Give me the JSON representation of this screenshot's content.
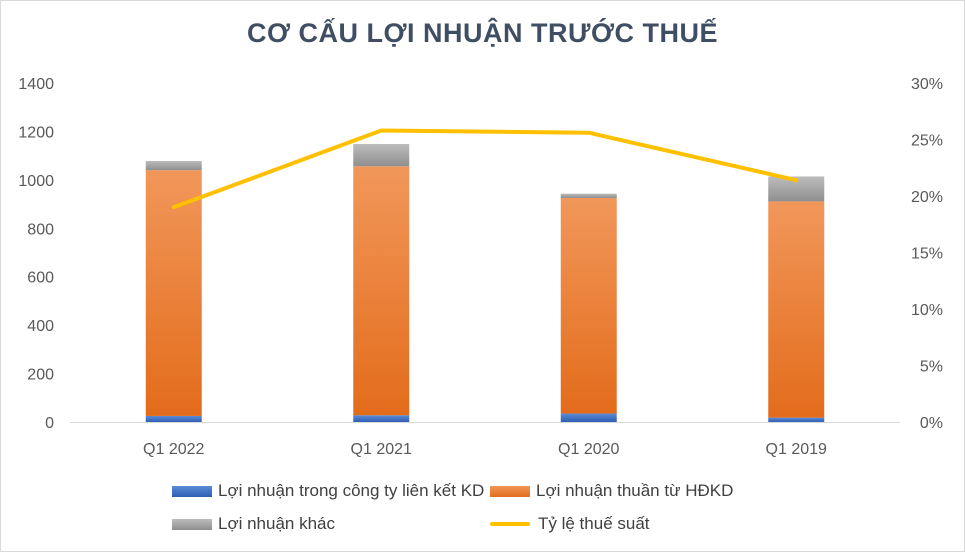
{
  "chart_data": {
    "type": "bar",
    "title": "CƠ CẤU LỢI NHUẬN TRƯỚC THUẾ",
    "stacked": true,
    "categories": [
      "Q1 2022",
      "Q1 2021",
      "Q1 2020",
      "Q1 2019"
    ],
    "series": [
      {
        "name": "Lợi nhuận trong công ty liên kết KD",
        "values": [
          25,
          28,
          35,
          18
        ],
        "color": "#4472c4"
      },
      {
        "name": "Lợi nhuận thuần từ HĐKD",
        "values": [
          1015,
          1028,
          890,
          893
        ],
        "color": "#ed7d31"
      },
      {
        "name": "Lợi nhuận khác",
        "values": [
          38,
          92,
          18,
          103
        ],
        "color": "#a5a5a5"
      }
    ],
    "line_series": {
      "name": "Tỷ lệ thuế suất",
      "values": [
        19.0,
        25.8,
        25.6,
        21.4
      ],
      "color": "#ffc000",
      "axis": "right"
    },
    "y_left": {
      "ylim": [
        0,
        1400
      ],
      "ticks": [
        "0",
        "200",
        "400",
        "600",
        "800",
        "1000",
        "1200",
        "1400"
      ]
    },
    "y_right": {
      "ylim": [
        0,
        30
      ],
      "ticks": [
        "0%",
        "5%",
        "10%",
        "15%",
        "20%",
        "25%",
        "30%"
      ]
    },
    "grid": false,
    "legend_position": "bottom"
  }
}
